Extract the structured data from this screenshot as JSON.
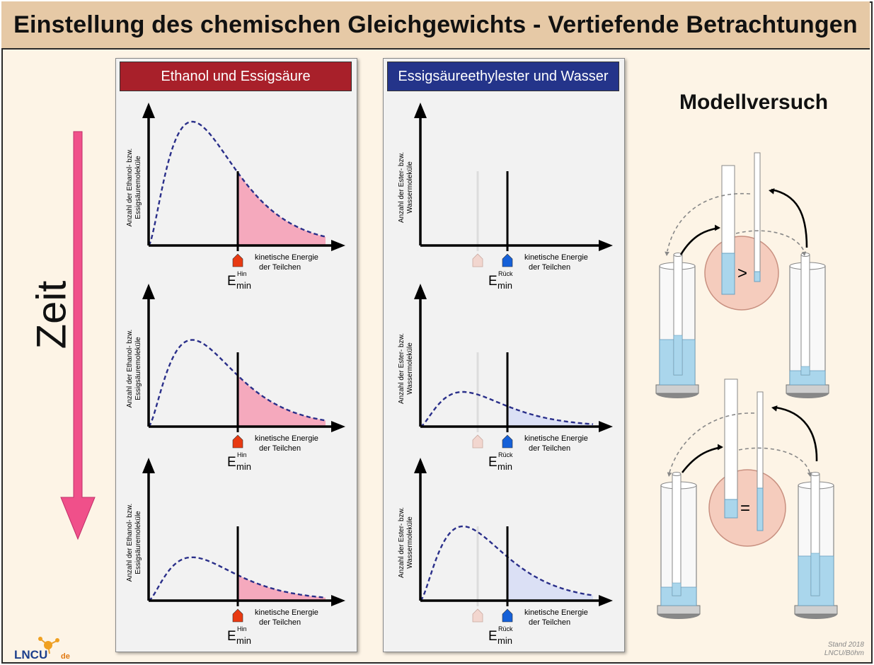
{
  "title": "Einstellung des chemischen Gleichgewichts - Vertiefende Betrachtungen",
  "time_label": "Zeit",
  "left_panel": {
    "header": "Ethanol und Essigsäure",
    "ylabel_line1": "Anzahl der Ethanol- bzw.",
    "ylabel_line2": "Essigsäuremoleküle",
    "xlabel_line1": "kinetische Energie",
    "xlabel_line2": "der Teilchen",
    "emin": "E",
    "emin_sub": "min",
    "emin_sup": "Hin"
  },
  "right_panel": {
    "header": "Essigsäureethylester und Wasser",
    "ylabel_line1": "Anzahl der Ester- bzw.",
    "ylabel_line2": "Wassermoleküle",
    "xlabel_line1": "kinetische Energie",
    "xlabel_line2": "der Teilchen",
    "emin": "E",
    "emin_sub": "min",
    "emin_sup": "Rück"
  },
  "model": {
    "title": "Modellversuch",
    "comparison_top": ">",
    "comparison_bottom": "="
  },
  "footer": {
    "stand": "Stand 2018",
    "author": "LNCU/Böhm",
    "logo_text": "LNCU",
    "logo_suffix": "de"
  },
  "chart_data": [
    {
      "type": "area",
      "panel": "left",
      "stage": 1,
      "curve_height": 1.0,
      "emin_position": 0.5
    },
    {
      "type": "area",
      "panel": "left",
      "stage": 2,
      "curve_height": 0.7,
      "emin_position": 0.5
    },
    {
      "type": "area",
      "panel": "left",
      "stage": 3,
      "curve_height": 0.35,
      "emin_position": 0.5
    },
    {
      "type": "area",
      "panel": "right",
      "stage": 1,
      "curve_height": 0.0,
      "emin_position": 0.5
    },
    {
      "type": "area",
      "panel": "right",
      "stage": 2,
      "curve_height": 0.28,
      "emin_position": 0.5
    },
    {
      "type": "area",
      "panel": "right",
      "stage": 3,
      "curve_height": 0.6,
      "emin_position": 0.5
    }
  ],
  "colors": {
    "left_fill": "#f5a9bd",
    "right_fill": "#dbe0f5",
    "curve": "#2a2f8a",
    "left_marker": "#e83a12",
    "right_marker": "#1560d8",
    "ghost_marker": "#f2d6cf",
    "zeit_arrow": "#f0508a",
    "water": "#aad6ec",
    "circle": "#f5ccbd"
  }
}
